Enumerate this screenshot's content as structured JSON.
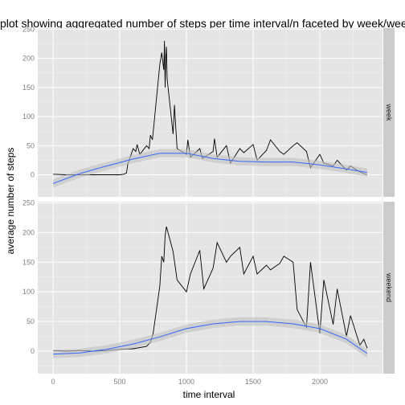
{
  "chart_data": {
    "type": "line",
    "title": "plot showing aggregated number of steps per time interval/n faceted by week/weekend",
    "xlabel": "time interval",
    "ylabel": "average number of steps",
    "xlim": [
      -115,
      2470
    ],
    "ylim": [
      -38,
      252
    ],
    "x_ticks": [
      0,
      500,
      1000,
      1500,
      2000
    ],
    "y_ticks": [
      0,
      50,
      100,
      150,
      200,
      250
    ],
    "grid": true,
    "smoother": {
      "method": "loess",
      "color": "#3366ff",
      "band_color": "#bfbfbf"
    },
    "panels": [
      {
        "strip_label": "week",
        "series": {
          "x": [
            0,
            100,
            200,
            300,
            400,
            500,
            530,
            550,
            560,
            600,
            620,
            630,
            650,
            700,
            720,
            730,
            745,
            800,
            815,
            830,
            835,
            840,
            845,
            850,
            855,
            900,
            910,
            920,
            930,
            1000,
            1010,
            1030,
            1100,
            1120,
            1200,
            1210,
            1230,
            1300,
            1330,
            1400,
            1430,
            1500,
            1530,
            1600,
            1630,
            1700,
            1730,
            1800,
            1830,
            1900,
            1930,
            2000,
            2030,
            2100,
            2130,
            2200,
            2230,
            2300,
            2330,
            2355
          ],
          "y": [
            1,
            0,
            0,
            0,
            0,
            0,
            1,
            3,
            18,
            45,
            40,
            52,
            35,
            50,
            45,
            68,
            60,
            190,
            210,
            180,
            230,
            150,
            200,
            220,
            165,
            70,
            120,
            80,
            45,
            35,
            60,
            30,
            45,
            28,
            40,
            62,
            30,
            50,
            20,
            45,
            38,
            52,
            25,
            42,
            60,
            40,
            35,
            50,
            55,
            40,
            12,
            35,
            20,
            15,
            25,
            8,
            15,
            5,
            2,
            0
          ]
        },
        "smooth": {
          "x": [
            0,
            200,
            400,
            600,
            800,
            1000,
            1200,
            1400,
            1600,
            1800,
            2000,
            2200,
            2355
          ],
          "y": [
            -15,
            2,
            15,
            27,
            37,
            37,
            28,
            23,
            22,
            22,
            17,
            10,
            4
          ]
        }
      },
      {
        "strip_label": "weekend",
        "series": {
          "x": [
            0,
            100,
            200,
            300,
            400,
            500,
            600,
            700,
            730,
            750,
            800,
            815,
            830,
            840,
            850,
            900,
            930,
            1000,
            1030,
            1100,
            1130,
            1200,
            1230,
            1300,
            1330,
            1400,
            1430,
            1500,
            1530,
            1600,
            1630,
            1700,
            1730,
            1800,
            1830,
            1900,
            1930,
            2000,
            2030,
            2100,
            2130,
            2200,
            2230,
            2300,
            2330,
            2355
          ],
          "y": [
            1,
            0,
            1,
            0,
            1,
            3,
            4,
            8,
            15,
            30,
            110,
            160,
            150,
            195,
            210,
            168,
            120,
            100,
            130,
            170,
            105,
            140,
            183,
            150,
            160,
            175,
            130,
            160,
            130,
            145,
            137,
            148,
            160,
            150,
            70,
            40,
            150,
            30,
            120,
            45,
            105,
            25,
            60,
            10,
            20,
            5
          ]
        },
        "smooth": {
          "x": [
            0,
            200,
            400,
            600,
            800,
            1000,
            1200,
            1400,
            1600,
            1800,
            2000,
            2200,
            2355
          ],
          "y": [
            -5,
            -3,
            3,
            12,
            24,
            38,
            46,
            50,
            50,
            46,
            38,
            20,
            -4
          ]
        }
      }
    ]
  }
}
